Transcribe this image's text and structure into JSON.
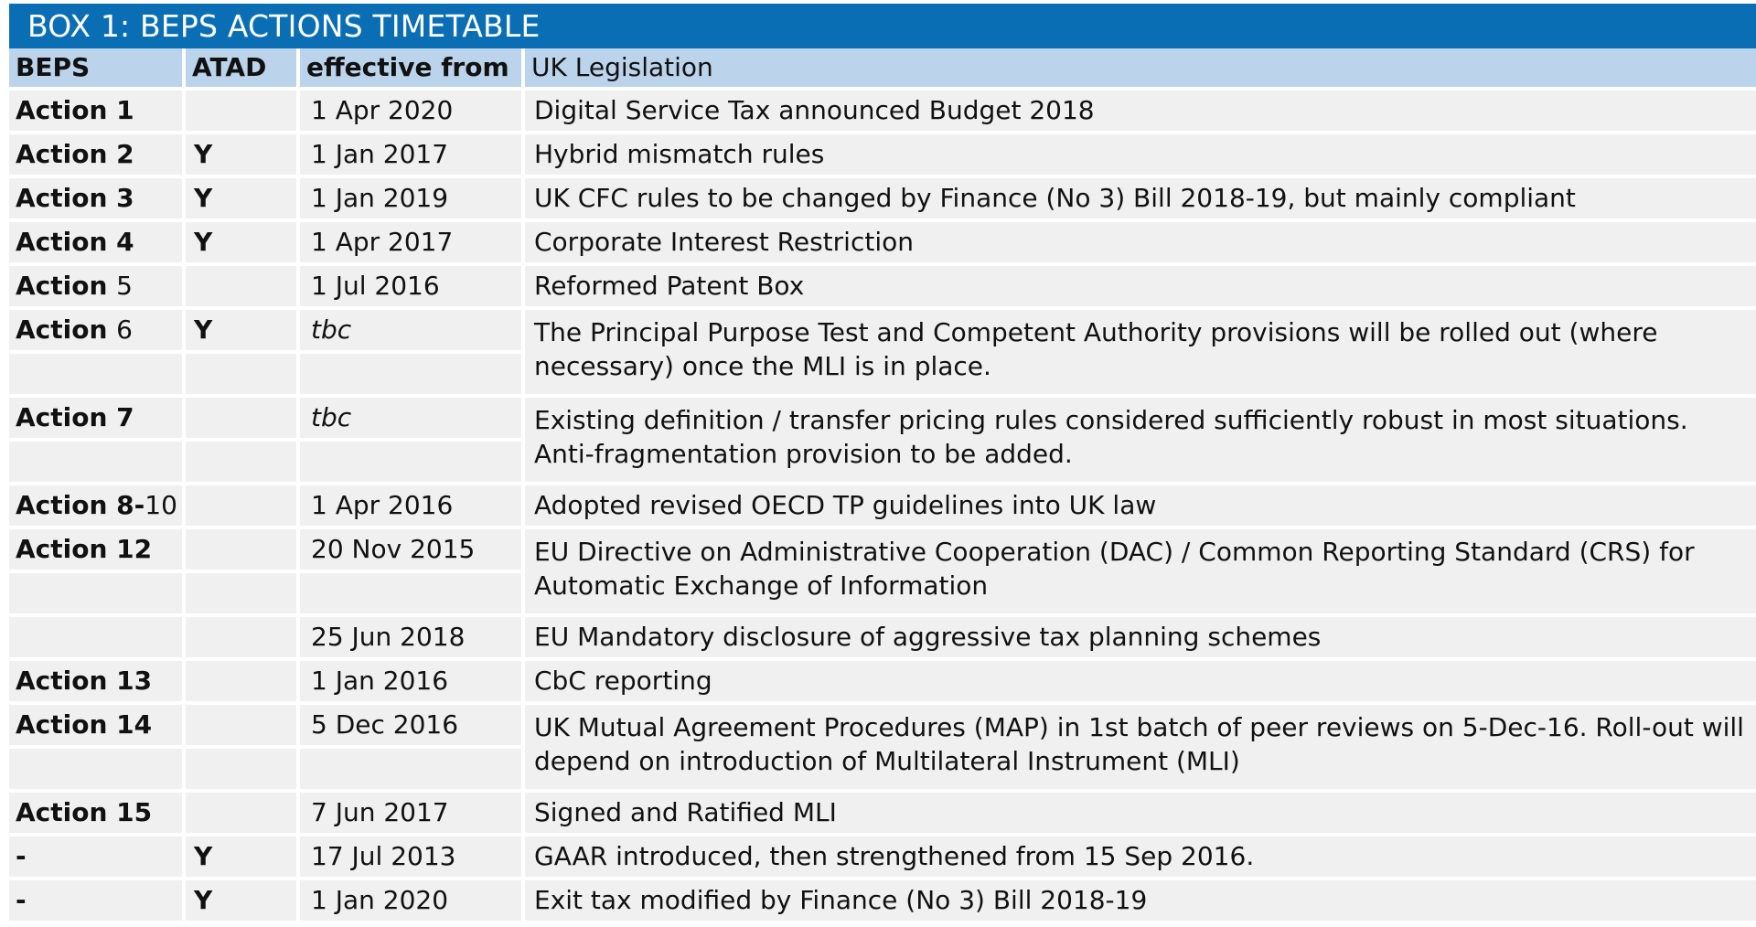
{
  "title": "BOX 1: BEPS ACTIONS TIMETABLE",
  "columns": [
    "BEPS",
    "ATAD",
    "effective from",
    "UK Legislation"
  ],
  "rows": [
    {
      "beps": "Action 1",
      "beps_bold": "Action 1",
      "beps_num": "",
      "atad": "",
      "effective": "1 Apr 2020",
      "italic": false,
      "legislation": "Digital Service Tax announced Budget 2018",
      "multiline": false
    },
    {
      "beps_bold": "Action 2",
      "beps_num": "",
      "atad": "Y",
      "effective": "1 Jan 2017",
      "italic": false,
      "legislation": "Hybrid mismatch rules",
      "multiline": false
    },
    {
      "beps_bold": "Action 3",
      "beps_num": "",
      "atad": "Y",
      "effective": "1 Jan 2019",
      "italic": false,
      "legislation": "UK CFC rules to be changed by Finance (No 3) Bill 2018-19, but mainly compliant",
      "multiline": false
    },
    {
      "beps_bold": "Action 4",
      "beps_num": "",
      "atad": "Y",
      "effective": "1 Apr 2017",
      "italic": false,
      "legislation": "Corporate Interest Restriction",
      "multiline": false
    },
    {
      "beps_bold": "Action ",
      "beps_num": "5",
      "atad": "",
      "effective": "1 Jul 2016",
      "italic": false,
      "legislation": "Reformed Patent Box",
      "multiline": false
    },
    {
      "beps_bold": "Action ",
      "beps_num": "6",
      "atad": "Y",
      "effective": "tbc",
      "italic": true,
      "legislation": "The Principal Purpose Test and Competent Authority provisions will be rolled out (where necessary) once the MLI is in place.",
      "multiline": true
    },
    {
      "beps_bold": "Action 7",
      "beps_num": "",
      "atad": "",
      "effective": "tbc",
      "italic": true,
      "legislation": "Existing definition / transfer pricing rules considered sufficiently robust in most situations. Anti-fragmentation provision to be added.",
      "multiline": true
    },
    {
      "beps_bold": "Action 8-",
      "beps_num": "10",
      "atad": "",
      "effective": "1 Apr 2016",
      "italic": false,
      "legislation": "Adopted revised OECD TP guidelines into UK law",
      "multiline": false
    },
    {
      "beps_bold": "Action 12",
      "beps_num": "",
      "atad": "",
      "effective": "20 Nov 2015",
      "italic": false,
      "legislation": "EU Directive on Administrative Cooperation (DAC) / Common Reporting Standard (CRS) for Automatic Exchange of Information",
      "multiline": true
    },
    {
      "beps_bold": "",
      "beps_num": "",
      "atad": "",
      "effective": "25 Jun 2018",
      "italic": false,
      "legislation": "EU Mandatory disclosure of aggressive tax planning schemes",
      "multiline": false
    },
    {
      "beps_bold": "Action 13",
      "beps_num": "",
      "atad": "",
      "effective": "1 Jan 2016",
      "italic": false,
      "legislation": "CbC reporting",
      "multiline": false
    },
    {
      "beps_bold": "Action 14",
      "beps_num": "",
      "atad": "",
      "effective": "5 Dec 2016",
      "italic": false,
      "legislation": "UK Mutual Agreement Procedures (MAP) in 1st batch of peer reviews on 5-Dec-16. Roll-out will depend on introduction of Multilateral Instrument (MLI)",
      "multiline": true
    },
    {
      "beps_bold": "Action 15",
      "beps_num": "",
      "atad": "",
      "effective": "7 Jun 2017",
      "italic": false,
      "legislation": "Signed and Ratified MLI",
      "multiline": false
    },
    {
      "beps_bold": "-",
      "beps_num": "",
      "atad": "Y",
      "effective": "17 Jul 2013",
      "italic": false,
      "legislation": "GAAR introduced, then strengthened from 15 Sep 2016.",
      "multiline": false
    },
    {
      "beps_bold": "-",
      "beps_num": "",
      "atad": "Y",
      "effective": " 1 Jan 2020",
      "italic": false,
      "legislation": "Exit tax modified by Finance (No 3) Bill 2018-19",
      "multiline": false
    }
  ],
  "colors": {
    "title_bar": "#0a6eb5",
    "header_row": "#bcd3ec",
    "cell": "#f0f0f0"
  }
}
